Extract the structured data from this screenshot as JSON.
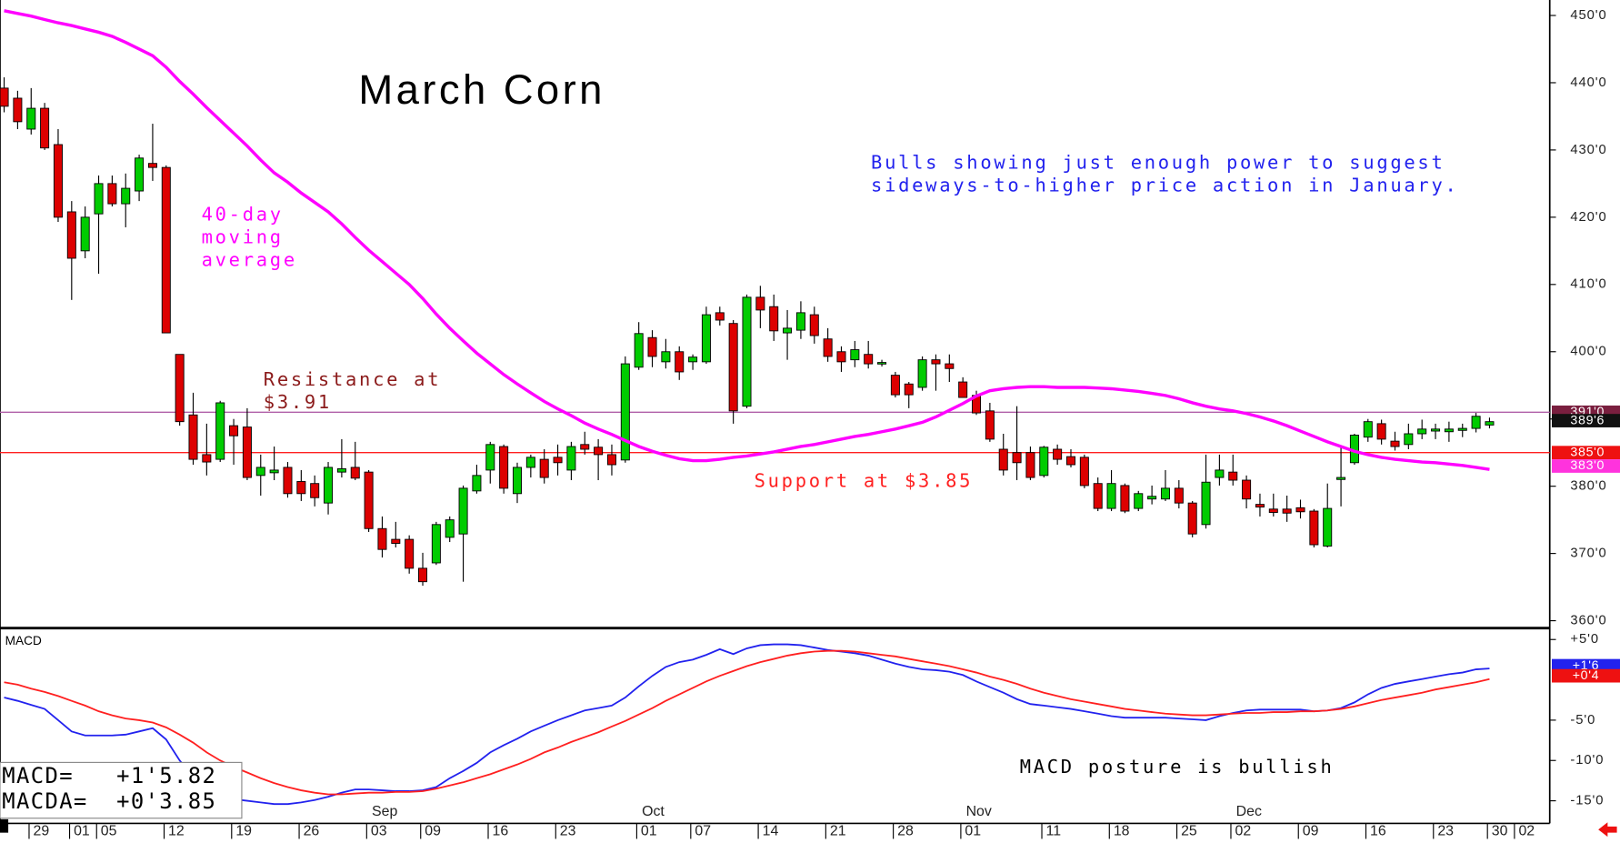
{
  "chart_data": {
    "type": "candlestick",
    "title": "March Corn",
    "categories": [
      null,
      null,
      "29",
      null,
      null,
      "01",
      null,
      "05",
      null,
      null,
      null,
      null,
      "12",
      null,
      null,
      null,
      null,
      "19",
      null,
      null,
      null,
      null,
      "26",
      null,
      null,
      null,
      null,
      "03",
      null,
      null,
      null,
      "09",
      null,
      null,
      null,
      null,
      "16",
      null,
      null,
      null,
      null,
      "23",
      null,
      null,
      null,
      null,
      null,
      "01",
      null,
      null,
      null,
      "07",
      null,
      null,
      null,
      null,
      "14",
      null,
      null,
      null,
      null,
      "21",
      null,
      null,
      null,
      null,
      "28",
      null,
      null,
      null,
      null,
      "01",
      null,
      null,
      null,
      null,
      null,
      "11",
      null,
      null,
      null,
      null,
      "18",
      null,
      null,
      null,
      null,
      "25",
      null,
      null,
      null,
      "02",
      null,
      null,
      null,
      null,
      "09",
      null,
      null,
      null,
      null,
      "16",
      null,
      null,
      null,
      null,
      "23",
      null,
      null,
      null,
      "30",
      null,
      "02"
    ],
    "months": [
      null,
      null,
      null,
      null,
      null,
      null,
      null,
      null,
      null,
      null,
      null,
      null,
      null,
      null,
      null,
      null,
      null,
      null,
      null,
      null,
      null,
      null,
      null,
      null,
      null,
      null,
      null,
      "Sep",
      null,
      null,
      null,
      null,
      null,
      null,
      null,
      null,
      null,
      null,
      null,
      null,
      null,
      null,
      null,
      null,
      null,
      null,
      null,
      "Oct",
      null,
      null,
      null,
      null,
      null,
      null,
      null,
      null,
      null,
      null,
      null,
      null,
      null,
      null,
      null,
      null,
      null,
      null,
      null,
      null,
      null,
      null,
      null,
      "Nov",
      null,
      null,
      null,
      null,
      null,
      null,
      null,
      null,
      null,
      null,
      null,
      null,
      null,
      null,
      null,
      null,
      null,
      null,
      null,
      "Dec",
      null,
      null,
      null,
      null,
      null,
      null,
      null,
      null,
      null,
      null,
      null,
      null,
      null,
      null,
      null,
      null,
      null,
      null,
      null,
      null,
      null
    ],
    "open": [
      439.2,
      437.7,
      433.1,
      436.2,
      430.8,
      420.8,
      415,
      420.5,
      425,
      422,
      423.9,
      428,
      427.4,
      399.6,
      390.6,
      384.7,
      384,
      389,
      388.8,
      381.6,
      382,
      382.8,
      380.7,
      380.4,
      377.5,
      382.1,
      382.8,
      382.1,
      373.7,
      372.1,
      372.1,
      367.8,
      368.6,
      372.4,
      372.9,
      379.3,
      382.4,
      385.9,
      378.9,
      382.8,
      384,
      384.3,
      382.4,
      386.2,
      385.8,
      384.7,
      383.9,
      397.7,
      402.1,
      398.5,
      400,
      398.5,
      398.5,
      405.8,
      404.2,
      391.9,
      408.1,
      406.7,
      402.8,
      403.2,
      405.5,
      401.9,
      400,
      398.8,
      399.6,
      398.2,
      396.5,
      395.2,
      394.7,
      398.8,
      398.2,
      395.5,
      393.5,
      391.2,
      385.5,
      385,
      385,
      381.6,
      385.5,
      384.4,
      384.3,
      380.4,
      376.7,
      380.1,
      376.7,
      378.1,
      378.1,
      379.7,
      377.5,
      374.3,
      381.3,
      382.1,
      380.9,
      377.3,
      376.6,
      376.6,
      376.8,
      376.3,
      371.1,
      381,
      383.5,
      387.3,
      389.3,
      386.7,
      386.2,
      387.8,
      388.2,
      388.1,
      388.3,
      388.6,
      389.1,
      null,
      null
    ],
    "high": [
      440.8,
      438.8,
      439.2,
      437,
      433.1,
      422.4,
      421.6,
      426.2,
      426.2,
      426.5,
      429.3,
      433.9,
      427.7,
      399.6,
      393.9,
      389.3,
      392.7,
      390,
      391.6,
      384.7,
      385.9,
      383.6,
      382.4,
      381.6,
      383.6,
      387,
      386.6,
      382.4,
      375.5,
      374.7,
      372.7,
      370.1,
      374.7,
      375.5,
      380.1,
      383.2,
      386.6,
      386.2,
      383.5,
      384.7,
      385.5,
      386.2,
      386.6,
      388.1,
      387,
      386.2,
      399.3,
      404.4,
      403.2,
      401.9,
      400.8,
      399.6,
      406.7,
      406.7,
      404.7,
      408.5,
      409.8,
      408.5,
      406.2,
      407.5,
      406.7,
      403.5,
      400.8,
      401.6,
      401.6,
      398.8,
      397,
      395.5,
      399.3,
      399.6,
      399.6,
      396.2,
      394.2,
      392.4,
      387.8,
      391.9,
      385.9,
      386,
      386.2,
      385.5,
      384.7,
      381.3,
      382.4,
      380.4,
      379.3,
      380.1,
      382.4,
      380.9,
      377.8,
      384.7,
      384.7,
      384.7,
      381.6,
      378.9,
      378.9,
      378.6,
      378,
      376.6,
      380.4,
      385.9,
      387.8,
      390,
      389.9,
      388.1,
      389.3,
      389.9,
      389.3,
      389.6,
      389.3,
      390.9,
      390.2,
      null,
      null
    ],
    "low": [
      435.6,
      433.1,
      432.3,
      430,
      419.3,
      407.7,
      413.9,
      411.6,
      421.6,
      418.5,
      422.4,
      425.4,
      402.8,
      389,
      383.2,
      381.6,
      383.6,
      383.2,
      380.9,
      378.6,
      380.9,
      378.3,
      377.8,
      377,
      375.8,
      381.3,
      380.9,
      373.2,
      369.4,
      370.9,
      367,
      365.2,
      368.3,
      371.7,
      365.8,
      378.9,
      380.4,
      378.9,
      377.5,
      381.3,
      380.4,
      381.6,
      380.9,
      384.7,
      380.9,
      381.6,
      383.5,
      397.3,
      397.7,
      397.5,
      395.8,
      397.3,
      398.2,
      403.9,
      389.3,
      391.6,
      403.5,
      401.6,
      398.8,
      401.9,
      401.2,
      398.5,
      397,
      397.7,
      397.5,
      397.8,
      393.2,
      391.6,
      394.2,
      394.2,
      395.5,
      393.2,
      390.6,
      386.6,
      381.6,
      380.9,
      380.9,
      381.3,
      383.2,
      382.8,
      379.7,
      376.3,
      376.3,
      376,
      376.3,
      377.3,
      377.8,
      376.7,
      372.4,
      373.7,
      380.1,
      380.1,
      376.7,
      375.5,
      375.5,
      374.7,
      375.2,
      370.9,
      370.9,
      377,
      383.2,
      386.6,
      386.2,
      385.3,
      385.5,
      387,
      387,
      386.6,
      387.3,
      388,
      388.6,
      null,
      null
    ],
    "close": [
      436.5,
      434.2,
      436.2,
      430.3,
      420,
      413.9,
      420,
      425,
      422,
      424.3,
      428.8,
      427.4,
      402.8,
      389.6,
      384,
      383.6,
      392.4,
      387.5,
      381.3,
      382.8,
      382.4,
      378.9,
      378.9,
      378.3,
      382.8,
      382.6,
      381.2,
      373.7,
      370.6,
      371.5,
      367.8,
      365.8,
      374.3,
      375,
      379.7,
      381.6,
      386.2,
      379.7,
      382.8,
      384.3,
      381.3,
      383.5,
      385.9,
      385.5,
      384.7,
      383.2,
      398.2,
      402.7,
      399.3,
      400,
      397,
      399.2,
      405.5,
      404.7,
      391.2,
      408.1,
      406.2,
      403.1,
      403.5,
      405.8,
      402.4,
      399.3,
      398.5,
      400.3,
      398.2,
      398.4,
      393.6,
      393.6,
      398.8,
      398.2,
      397.5,
      393.2,
      390.9,
      387,
      382.4,
      383.5,
      381.3,
      385.8,
      384,
      383.2,
      380.1,
      376.7,
      380.4,
      376.3,
      378.9,
      378.5,
      379.7,
      377.5,
      372.9,
      380.6,
      382.4,
      380.9,
      378.1,
      376.9,
      376.1,
      376,
      376.2,
      371.3,
      376.7,
      381.3,
      387.6,
      389.6,
      387,
      385.9,
      387.8,
      388.5,
      388.5,
      388.5,
      388.6,
      390.4,
      389.6,
      null,
      null
    ],
    "up_color": "#00cc00",
    "down_color": "#dd0000",
    "ylim": [
      358.9,
      452.3
    ],
    "yticks": [
      {
        "value": 360,
        "label": "360'0"
      },
      {
        "value": 370,
        "label": "370'0"
      },
      {
        "value": 380,
        "label": "380'0"
      },
      {
        "value": 390,
        "label": "390'0"
      },
      {
        "value": 400,
        "label": "400'0"
      },
      {
        "value": 410,
        "label": "410'0"
      },
      {
        "value": 420,
        "label": "420'0"
      },
      {
        "value": 430,
        "label": "430'0"
      },
      {
        "value": 440,
        "label": "440'0"
      },
      {
        "value": 450,
        "label": "450'0"
      }
    ],
    "grid": false,
    "moving_average": {
      "color": "#ff00ff",
      "values": [
        450.7,
        450.3,
        449.9,
        449.4,
        448.9,
        448.5,
        448.0,
        447.5,
        446.9,
        446.0,
        445.0,
        444.0,
        442.3,
        440.2,
        438.3,
        436.3,
        434.4,
        432.5,
        430.6,
        428.5,
        426.6,
        425.2,
        423.6,
        422.2,
        420.8,
        419.0,
        417.0,
        415.1,
        413.4,
        411.7,
        410.0,
        407.9,
        405.6,
        403.5,
        401.6,
        399.8,
        398.2,
        396.6,
        395.2,
        393.9,
        392.6,
        391.5,
        390.5,
        389.4,
        388.5,
        387.7,
        386.8,
        385.9,
        385.2,
        384.6,
        384.1,
        383.8,
        383.8,
        384.0,
        384.3,
        384.5,
        384.8,
        385.1,
        385.5,
        385.9,
        386.2,
        386.6,
        387.0,
        387.4,
        387.7,
        388.1,
        388.5,
        389.0,
        389.5,
        390.3,
        391.3,
        392.3,
        393.4,
        394.2,
        394.5,
        394.7,
        394.8,
        394.8,
        394.7,
        394.7,
        394.7,
        394.6,
        394.5,
        394.3,
        394.1,
        393.8,
        393.5,
        393.0,
        392.4,
        391.9,
        391.5,
        391.2,
        390.8,
        390.3,
        389.7,
        389.0,
        388.2,
        387.4,
        386.6,
        385.9,
        385.2,
        384.7,
        384.3,
        384.0,
        383.8,
        383.6,
        383.5,
        383.3,
        383.1,
        382.8,
        382.5,
        null,
        null
      ]
    },
    "levels": [
      {
        "value": 391,
        "color": "#b060a8"
      },
      {
        "value": 385,
        "color": "#ff2020"
      }
    ],
    "price_tags": [
      {
        "value": 391,
        "label": "391'0",
        "color": "#7a1f3f"
      },
      {
        "value": 389.75,
        "label": "389'6",
        "color": "#111111"
      },
      {
        "value": 385,
        "label": "385'0",
        "color": "#ee1111"
      },
      {
        "value": 383,
        "label": "383'0",
        "color": "#ff33dd"
      }
    ],
    "annotations": [
      {
        "lines": [
          "40-day",
          "moving",
          "average"
        ],
        "color": "#ff00ff"
      },
      {
        "lines": [
          "Bulls showing just enough power to suggest",
          "sideways-to-higher price action in January."
        ],
        "color": "#2222ee"
      },
      {
        "lines": [
          "Resistance at",
          "$3.91"
        ],
        "color": "#8b1a1a"
      },
      {
        "lines": [
          "Support at $3.85"
        ],
        "color": "#ff2020"
      }
    ],
    "macd": {
      "title": "MACD",
      "ylim": [
        -17.8,
        5.9
      ],
      "yticks": [
        {
          "value": 5,
          "label": "+5'0"
        },
        {
          "value": -5,
          "label": "-5'0"
        },
        {
          "value": -10,
          "label": "-10'0"
        },
        {
          "value": -15,
          "label": "-15'0"
        }
      ],
      "series": [
        {
          "color": "#2222ee",
          "values": [
            -2.2,
            -2.6,
            -3.1,
            -3.6,
            -5.0,
            -6.4,
            -6.9,
            -6.9,
            -6.9,
            -6.8,
            -6.4,
            -6.0,
            -7.4,
            -10.0,
            -12.0,
            -13.4,
            -14.5,
            -14.8,
            -15.0,
            -15.2,
            -15.4,
            -15.4,
            -15.2,
            -14.9,
            -14.5,
            -14.0,
            -13.6,
            -13.6,
            -13.7,
            -13.8,
            -13.8,
            -13.7,
            -13.3,
            -12.2,
            -11.3,
            -10.3,
            -9.0,
            -8.1,
            -7.3,
            -6.4,
            -5.7,
            -5.0,
            -4.4,
            -3.8,
            -3.5,
            -3.2,
            -2.2,
            -0.8,
            0.5,
            1.6,
            2.2,
            2.5,
            3.1,
            3.8,
            3.2,
            3.9,
            4.3,
            4.4,
            4.4,
            4.3,
            4.0,
            3.7,
            3.5,
            3.3,
            3.0,
            2.5,
            2.0,
            1.6,
            1.3,
            1.2,
            1.0,
            0.6,
            -0.2,
            -0.9,
            -1.6,
            -2.4,
            -3.0,
            -3.2,
            -3.4,
            -3.6,
            -3.9,
            -4.2,
            -4.5,
            -4.7,
            -4.7,
            -4.7,
            -4.7,
            -4.8,
            -4.9,
            -5.0,
            -4.5,
            -4.1,
            -3.8,
            -3.7,
            -3.7,
            -3.7,
            -3.7,
            -3.9,
            -3.8,
            -3.5,
            -2.8,
            -1.8,
            -1.0,
            -0.5,
            -0.2,
            0.1,
            0.4,
            0.7,
            0.9,
            1.3,
            1.4,
            null,
            null
          ]
        },
        {
          "color": "#ff2020",
          "values": [
            -0.3,
            -0.6,
            -1.1,
            -1.5,
            -2.0,
            -2.6,
            -3.2,
            -3.9,
            -4.4,
            -4.8,
            -5.0,
            -5.3,
            -5.9,
            -6.8,
            -7.8,
            -9.0,
            -10.0,
            -10.8,
            -11.5,
            -12.2,
            -12.8,
            -13.3,
            -13.7,
            -14.0,
            -14.2,
            -14.2,
            -14.1,
            -14.0,
            -14.0,
            -13.9,
            -13.9,
            -13.8,
            -13.5,
            -13.1,
            -12.7,
            -12.2,
            -11.7,
            -11.1,
            -10.5,
            -9.8,
            -9.0,
            -8.4,
            -7.7,
            -7.1,
            -6.5,
            -5.8,
            -5.1,
            -4.3,
            -3.5,
            -2.6,
            -1.8,
            -1.0,
            -0.2,
            0.5,
            1.1,
            1.7,
            2.2,
            2.6,
            3.0,
            3.3,
            3.5,
            3.6,
            3.6,
            3.5,
            3.3,
            3.1,
            2.9,
            2.6,
            2.3,
            2.0,
            1.7,
            1.3,
            0.9,
            0.4,
            0.0,
            -0.5,
            -1.1,
            -1.6,
            -2.0,
            -2.4,
            -2.7,
            -3.0,
            -3.3,
            -3.6,
            -3.8,
            -4.0,
            -4.2,
            -4.3,
            -4.4,
            -4.4,
            -4.3,
            -4.2,
            -4.1,
            -4.1,
            -4.0,
            -4.0,
            -3.9,
            -3.9,
            -3.8,
            -3.6,
            -3.3,
            -2.9,
            -2.5,
            -2.2,
            -1.9,
            -1.6,
            -1.2,
            -0.9,
            -0.6,
            -0.3,
            0.1,
            null,
            null
          ]
        }
      ],
      "tags": [
        {
          "value": 1.75,
          "label": "+1'6",
          "color": "#2222ee"
        },
        {
          "value": 0.5,
          "label": "+0'4",
          "color": "#ee1111"
        }
      ],
      "readout": [
        "MACD=   +1'5.82",
        "MACDA=  +0'3.85"
      ],
      "annotation": "MACD posture is bullish"
    }
  }
}
